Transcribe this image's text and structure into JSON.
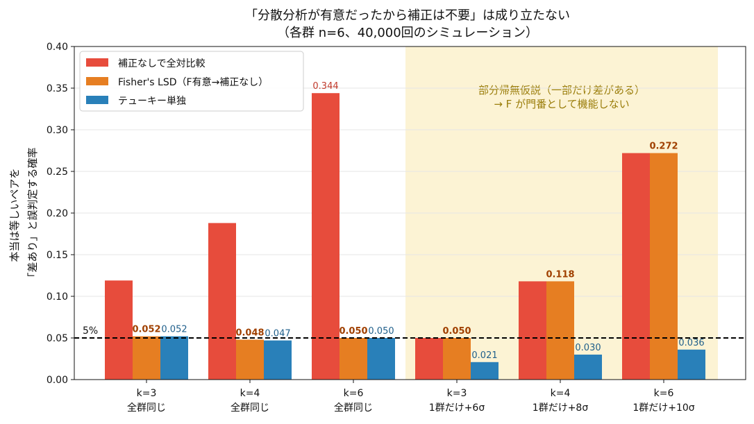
{
  "chart_data": {
    "type": "bar",
    "title": "「分散分析が有意だったから補正は不要」は成り立たない",
    "subtitle": "（各群 n=6、40,000回のシミュレーション）",
    "ylabel_line1": "本当は等しいペアを",
    "ylabel_line2": "「差あり」と誤判定する確率",
    "xlabel": "",
    "ylim": [
      0,
      0.4
    ],
    "yticks": [
      "0.00",
      "0.05",
      "0.10",
      "0.15",
      "0.20",
      "0.25",
      "0.30",
      "0.35",
      "0.40"
    ],
    "ytick_values": [
      0,
      0.05,
      0.1,
      0.15,
      0.2,
      0.25,
      0.3,
      0.35,
      0.4
    ],
    "grid": "horizontal",
    "legend_position": "top-left",
    "categories": [
      {
        "line1": "k=3",
        "line2": "全群同じ"
      },
      {
        "line1": "k=4",
        "line2": "全群同じ"
      },
      {
        "line1": "k=6",
        "line2": "全群同じ"
      },
      {
        "line1": "k=3",
        "line2": "1群だけ+6σ"
      },
      {
        "line1": "k=4",
        "line2": "1群だけ+8σ"
      },
      {
        "line1": "k=6",
        "line2": "1群だけ+10σ"
      }
    ],
    "series": [
      {
        "name": "補正なしで全対比較",
        "color": "#e74c3c",
        "label_color": "#c0392b",
        "values": [
          0.119,
          0.188,
          0.344,
          0.05,
          0.118,
          0.272
        ],
        "labels": [
          null,
          null,
          "0.344",
          null,
          null,
          null
        ],
        "label_bold": false
      },
      {
        "name": "Fisher's LSD（F有意→補正なし）",
        "color": "#e67e22",
        "label_color": "#a04000",
        "values": [
          0.052,
          0.048,
          0.05,
          0.05,
          0.118,
          0.272
        ],
        "labels": [
          "0.052",
          "0.048",
          "0.050",
          "0.050",
          "0.118",
          "0.272"
        ],
        "label_bold": true
      },
      {
        "name": "テューキー単独",
        "color": "#2980b9",
        "label_color": "#1f5f8b",
        "values": [
          0.052,
          0.047,
          0.05,
          0.021,
          0.03,
          0.036
        ],
        "labels": [
          "0.052",
          "0.047",
          "0.050",
          "0.021",
          "0.030",
          "0.036"
        ],
        "label_bold": false
      }
    ],
    "reference_line": {
      "value": 0.05,
      "label": "5%"
    },
    "highlight_region": {
      "from_category": 3,
      "to_category": 5,
      "color": "#fcf3d4",
      "text_line1": "部分帰無仮説（一部だけ差がある）",
      "text_line2": "→ F が門番として機能しない",
      "text_color": "#9a7d0a"
    }
  }
}
